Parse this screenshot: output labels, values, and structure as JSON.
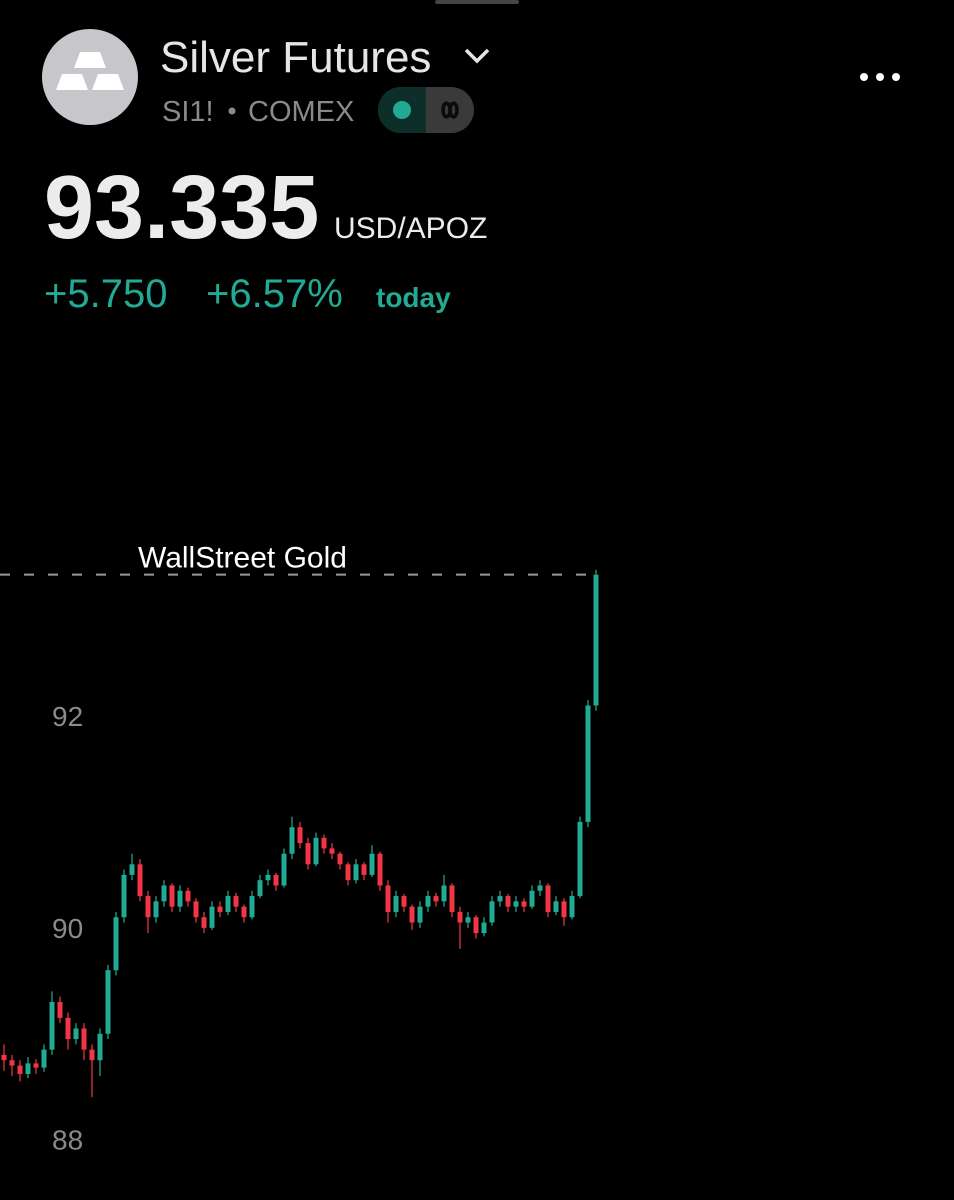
{
  "header": {
    "title": "Silver Futures",
    "symbol": "SI1!",
    "exchange": "COMEX",
    "price": "93.335",
    "unit": "USD/APOZ",
    "change": "+5.750",
    "change_percent": "+6.57%",
    "period": "today"
  },
  "chart": {
    "type": "candlestick",
    "watermark": "WallStreet Gold",
    "up_color": "#22ab94",
    "down_color": "#f23645",
    "ylim": [
      87.43,
      94.04
    ],
    "yticks": [
      88,
      90,
      92
    ],
    "candles": [
      [
        88.8,
        88.9,
        88.65,
        88.75
      ],
      [
        88.75,
        88.8,
        88.6,
        88.7
      ],
      [
        88.7,
        88.75,
        88.55,
        88.62
      ],
      [
        88.62,
        88.78,
        88.58,
        88.72
      ],
      [
        88.72,
        88.76,
        88.62,
        88.68
      ],
      [
        88.68,
        88.9,
        88.64,
        88.85
      ],
      [
        88.85,
        89.4,
        88.8,
        89.3
      ],
      [
        89.3,
        89.35,
        89.1,
        89.15
      ],
      [
        89.15,
        89.2,
        88.85,
        88.95
      ],
      [
        88.95,
        89.1,
        88.9,
        89.05
      ],
      [
        89.05,
        89.1,
        88.75,
        88.85
      ],
      [
        88.85,
        88.9,
        88.4,
        88.75
      ],
      [
        88.75,
        89.05,
        88.6,
        89.0
      ],
      [
        89.0,
        89.65,
        88.95,
        89.6
      ],
      [
        89.6,
        90.15,
        89.55,
        90.1
      ],
      [
        90.1,
        90.55,
        90.05,
        90.5
      ],
      [
        90.5,
        90.7,
        90.45,
        90.6
      ],
      [
        90.6,
        90.65,
        90.25,
        90.3
      ],
      [
        90.3,
        90.35,
        89.95,
        90.1
      ],
      [
        90.1,
        90.3,
        90.05,
        90.25
      ],
      [
        90.25,
        90.45,
        90.2,
        90.4
      ],
      [
        90.4,
        90.42,
        90.15,
        90.2
      ],
      [
        90.2,
        90.4,
        90.15,
        90.35
      ],
      [
        90.35,
        90.38,
        90.2,
        90.25
      ],
      [
        90.25,
        90.28,
        90.05,
        90.1
      ],
      [
        90.1,
        90.15,
        89.95,
        90.0
      ],
      [
        90.0,
        90.25,
        89.98,
        90.2
      ],
      [
        90.2,
        90.25,
        90.1,
        90.15
      ],
      [
        90.15,
        90.35,
        90.12,
        90.3
      ],
      [
        90.3,
        90.33,
        90.15,
        90.2
      ],
      [
        90.2,
        90.22,
        90.05,
        90.1
      ],
      [
        90.1,
        90.35,
        90.08,
        90.3
      ],
      [
        90.3,
        90.5,
        90.28,
        90.45
      ],
      [
        90.45,
        90.55,
        90.4,
        90.5
      ],
      [
        90.5,
        90.52,
        90.35,
        90.4
      ],
      [
        90.4,
        90.75,
        90.38,
        90.7
      ],
      [
        90.7,
        91.05,
        90.65,
        90.95
      ],
      [
        90.95,
        91.0,
        90.75,
        90.8
      ],
      [
        90.8,
        90.85,
        90.55,
        90.6
      ],
      [
        90.6,
        90.9,
        90.58,
        90.85
      ],
      [
        90.85,
        90.88,
        90.7,
        90.75
      ],
      [
        90.75,
        90.8,
        90.65,
        90.7
      ],
      [
        90.7,
        90.72,
        90.55,
        90.6
      ],
      [
        90.6,
        90.62,
        90.4,
        90.45
      ],
      [
        90.45,
        90.65,
        90.42,
        90.6
      ],
      [
        90.6,
        90.62,
        90.45,
        90.5
      ],
      [
        90.5,
        90.78,
        90.48,
        90.7
      ],
      [
        90.7,
        90.72,
        90.35,
        90.4
      ],
      [
        90.4,
        90.45,
        90.05,
        90.15
      ],
      [
        90.15,
        90.35,
        90.1,
        90.3
      ],
      [
        90.3,
        90.32,
        90.15,
        90.2
      ],
      [
        90.2,
        90.22,
        89.98,
        90.05
      ],
      [
        90.05,
        90.25,
        90.0,
        90.2
      ],
      [
        90.2,
        90.35,
        90.15,
        90.3
      ],
      [
        90.3,
        90.33,
        90.2,
        90.25
      ],
      [
        90.25,
        90.5,
        90.2,
        90.4
      ],
      [
        90.4,
        90.42,
        90.1,
        90.15
      ],
      [
        90.15,
        90.2,
        89.8,
        90.05
      ],
      [
        90.05,
        90.15,
        90.0,
        90.1
      ],
      [
        90.1,
        90.12,
        89.9,
        89.95
      ],
      [
        89.95,
        90.1,
        89.92,
        90.05
      ],
      [
        90.05,
        90.3,
        90.02,
        90.25
      ],
      [
        90.25,
        90.35,
        90.2,
        90.3
      ],
      [
        90.3,
        90.32,
        90.15,
        90.2
      ],
      [
        90.2,
        90.3,
        90.15,
        90.25
      ],
      [
        90.25,
        90.28,
        90.15,
        90.2
      ],
      [
        90.2,
        90.4,
        90.18,
        90.35
      ],
      [
        90.35,
        90.45,
        90.3,
        90.4
      ],
      [
        90.4,
        90.42,
        90.1,
        90.15
      ],
      [
        90.15,
        90.3,
        90.12,
        90.25
      ],
      [
        90.25,
        90.28,
        90.02,
        90.1
      ],
      [
        90.1,
        90.35,
        90.08,
        90.3
      ],
      [
        90.3,
        91.05,
        90.28,
        91.0
      ],
      [
        91.0,
        92.15,
        90.95,
        92.1
      ],
      [
        92.1,
        93.38,
        92.05,
        93.335
      ]
    ]
  }
}
